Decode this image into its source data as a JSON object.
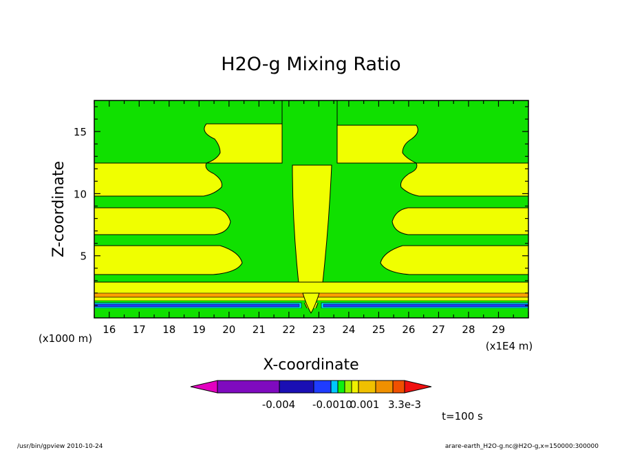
{
  "chart_data": {
    "type": "contour",
    "title": "H2O-g Mixing Ratio",
    "xlabel": "X-coordinate",
    "ylabel": "Z-coordinate",
    "x_unit": "(x1E4 m)",
    "y_unit": "(x1000 m)",
    "xlim": [
      15.5,
      30.0
    ],
    "ylim": [
      0.0,
      17.5
    ],
    "x_ticks": [
      "16",
      "17",
      "18",
      "19",
      "20",
      "21",
      "22",
      "23",
      "24",
      "25",
      "26",
      "27",
      "28",
      "29"
    ],
    "y_ticks": [
      "5",
      "10",
      "15"
    ],
    "colorbar_labels": [
      "-0.004",
      "-0.0010",
      "0.001",
      "3.3e-3"
    ],
    "colorbar_colors": [
      "#e300c0",
      "#7f0abf",
      "#1a0fb4",
      "#1f3cff",
      "#00c8ff",
      "#10f010",
      "#a0f000",
      "#f0f000",
      "#f0c000",
      "#f09000",
      "#f05000",
      "#f01010"
    ],
    "colors": {
      "green": "#10e000",
      "yellow": "#f0ff00",
      "cyan": "#00e6ff",
      "blue": "#0000e0",
      "orange": "#ffa000"
    }
  },
  "time_label": "t=100 s",
  "footer_left": "/usr/bin/gpview   2010-10-24",
  "footer_right": "arare-earth_H2O-g.nc@H2O-g,x=150000:300000"
}
